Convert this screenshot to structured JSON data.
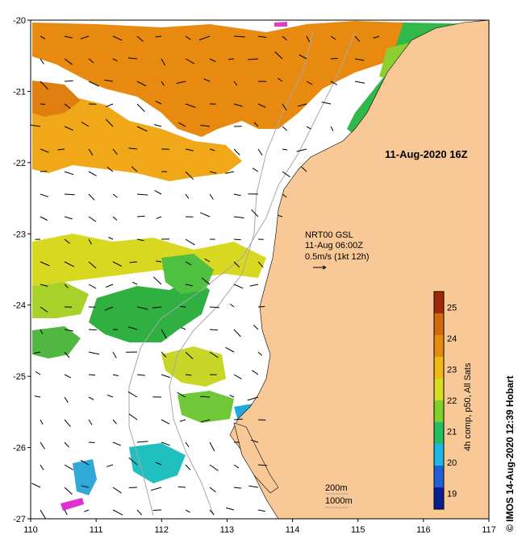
{
  "map": {
    "timestamp": "11-Aug-2020 16Z",
    "current_info": {
      "line1": "NRT00 GSL",
      "line2": "11-Aug 06:00Z",
      "line3": "0.5m/s (1kt 12h)"
    },
    "isobath_legend": {
      "shallow": "200m",
      "deep": "1000m"
    },
    "credit": "© IMOS 14-Aug-2020 12:39 Hobart",
    "x_axis": {
      "range": [
        110,
        117
      ],
      "ticks": [
        "110",
        "111",
        "112",
        "113",
        "114",
        "115",
        "116",
        "117"
      ]
    },
    "y_axis": {
      "range": [
        -20,
        -27
      ],
      "ticks": [
        "-20",
        "-21",
        "-22",
        "-23",
        "-24",
        "-25",
        "-26",
        "-27"
      ]
    },
    "colorbar": {
      "label": "4h comp, p50, All Sats",
      "range": [
        18.5,
        25.5
      ],
      "ticks": [
        "19",
        "20",
        "21",
        "22",
        "23",
        "24",
        "25"
      ],
      "colors": [
        "#0a1f8f",
        "#1f5fd8",
        "#20b7e8",
        "#20c060",
        "#7cd22a",
        "#d8dc20",
        "#f0b818",
        "#e88a10",
        "#d46a0e",
        "#a02a08"
      ]
    },
    "land_color": "#f8c896",
    "arrow_color": "#000000"
  }
}
